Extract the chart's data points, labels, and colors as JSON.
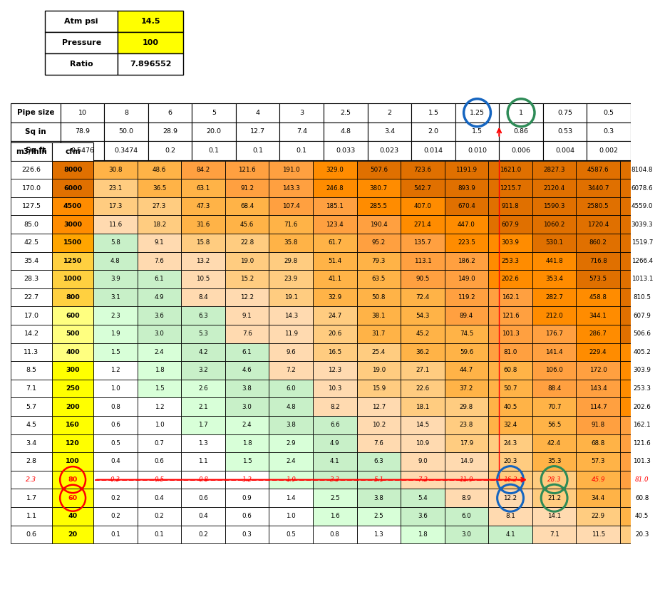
{
  "info_table": {
    "labels": [
      "Atm psi",
      "Pressure",
      "Ratio"
    ],
    "values": [
      "14.5",
      "100",
      "7.896552"
    ],
    "yellow_rows": [
      0,
      1
    ]
  },
  "pipe_header": {
    "labels": [
      "Pipe size",
      "10",
      "8",
      "6",
      "5",
      "4",
      "3",
      "2.5",
      "2",
      "1.5",
      "1.25",
      "1",
      "0.75",
      "0.5"
    ],
    "sq_in": [
      "Sq in",
      "78.9",
      "50.0",
      "28.9",
      "20.0",
      "12.7",
      "7.4",
      "4.8",
      "3.4",
      "2.0",
      "1.5",
      "0.86",
      "0.53",
      "0.3"
    ],
    "sq_ft": [
      "Sq ft",
      "0.5476",
      "0.3474",
      "0.2",
      "0.1",
      "0.1",
      "0.1",
      "0.033",
      "0.023",
      "0.014",
      "0.010",
      "0.006",
      "0.004",
      "0.002"
    ],
    "circle_blue_col": 10,
    "circle_green_col": 11
  },
  "flow_header": [
    "m3/min",
    "cfm"
  ],
  "flow_data": {
    "m3min": [
      226.6,
      170.0,
      127.5,
      85.0,
      42.5,
      35.4,
      28.3,
      22.7,
      17.0,
      14.2,
      11.3,
      8.5,
      7.1,
      5.7,
      4.5,
      3.4,
      2.8,
      2.3,
      1.7,
      1.1,
      0.6
    ],
    "cfm": [
      8000,
      6000,
      4500,
      3000,
      1500,
      1250,
      1000,
      800,
      600,
      500,
      400,
      300,
      250,
      200,
      160,
      120,
      100,
      80,
      60,
      40,
      20
    ],
    "values": [
      [
        30.8,
        48.6,
        84.2,
        121.6,
        191.0,
        329.0,
        507.6,
        723.6,
        1191.9,
        1621.0,
        2827.3,
        4587.6,
        8104.8
      ],
      [
        23.1,
        36.5,
        63.1,
        91.2,
        143.3,
        246.8,
        380.7,
        542.7,
        893.9,
        1215.7,
        2120.4,
        3440.7,
        6078.6
      ],
      [
        17.3,
        27.3,
        47.3,
        68.4,
        107.4,
        185.1,
        285.5,
        407.0,
        670.4,
        911.8,
        1590.3,
        2580.5,
        4559.0
      ],
      [
        11.6,
        18.2,
        31.6,
        45.6,
        71.6,
        123.4,
        190.4,
        271.4,
        447.0,
        607.9,
        1060.2,
        1720.4,
        3039.3
      ],
      [
        5.8,
        9.1,
        15.8,
        22.8,
        35.8,
        61.7,
        95.2,
        135.7,
        223.5,
        303.9,
        530.1,
        860.2,
        1519.7
      ],
      [
        4.8,
        7.6,
        13.2,
        19.0,
        29.8,
        51.4,
        79.3,
        113.1,
        186.2,
        253.3,
        441.8,
        716.8,
        1266.4
      ],
      [
        3.9,
        6.1,
        10.5,
        15.2,
        23.9,
        41.1,
        63.5,
        90.5,
        149.0,
        202.6,
        353.4,
        573.5,
        1013.1
      ],
      [
        3.1,
        4.9,
        8.4,
        12.2,
        19.1,
        32.9,
        50.8,
        72.4,
        119.2,
        162.1,
        282.7,
        458.8,
        810.5
      ],
      [
        2.3,
        3.6,
        6.3,
        9.1,
        14.3,
        24.7,
        38.1,
        54.3,
        89.4,
        121.6,
        212.0,
        344.1,
        607.9
      ],
      [
        1.9,
        3.0,
        5.3,
        7.6,
        11.9,
        20.6,
        31.7,
        45.2,
        74.5,
        101.3,
        176.7,
        286.7,
        506.6
      ],
      [
        1.5,
        2.4,
        4.2,
        6.1,
        9.6,
        16.5,
        25.4,
        36.2,
        59.6,
        81.0,
        141.4,
        229.4,
        405.2
      ],
      [
        1.2,
        1.8,
        3.2,
        4.6,
        7.2,
        12.3,
        19.0,
        27.1,
        44.7,
        60.8,
        106.0,
        172.0,
        303.9
      ],
      [
        1.0,
        1.5,
        2.6,
        3.8,
        6.0,
        10.3,
        15.9,
        22.6,
        37.2,
        50.7,
        88.4,
        143.4,
        253.3
      ],
      [
        0.8,
        1.2,
        2.1,
        3.0,
        4.8,
        8.2,
        12.7,
        18.1,
        29.8,
        40.5,
        70.7,
        114.7,
        202.6
      ],
      [
        0.6,
        1.0,
        1.7,
        2.4,
        3.8,
        6.6,
        10.2,
        14.5,
        23.8,
        32.4,
        56.5,
        91.8,
        162.1
      ],
      [
        0.5,
        0.7,
        1.3,
        1.8,
        2.9,
        4.9,
        7.6,
        10.9,
        17.9,
        24.3,
        42.4,
        68.8,
        121.6
      ],
      [
        0.4,
        0.6,
        1.1,
        1.5,
        2.4,
        4.1,
        6.3,
        9.0,
        14.9,
        20.3,
        35.3,
        57.3,
        101.3
      ],
      [
        0.3,
        0.5,
        0.8,
        1.2,
        1.9,
        3.3,
        5.1,
        7.2,
        11.9,
        16.2,
        28.3,
        45.9,
        81.0
      ],
      [
        0.2,
        0.4,
        0.6,
        0.9,
        1.4,
        2.5,
        3.8,
        5.4,
        8.9,
        12.2,
        21.2,
        34.4,
        60.8
      ],
      [
        0.2,
        0.2,
        0.4,
        0.6,
        1.0,
        1.6,
        2.5,
        3.6,
        6.0,
        8.1,
        14.1,
        22.9,
        40.5
      ],
      [
        0.1,
        0.1,
        0.2,
        0.3,
        0.5,
        0.8,
        1.3,
        1.8,
        3.0,
        4.1,
        7.1,
        11.5,
        20.3
      ]
    ]
  },
  "highlighted_row": 17,
  "highlighted_row2": 18,
  "red_circle_cfm_rows": [
    17,
    18
  ],
  "col_blue_circle": 10,
  "col_green_circle": 11
}
